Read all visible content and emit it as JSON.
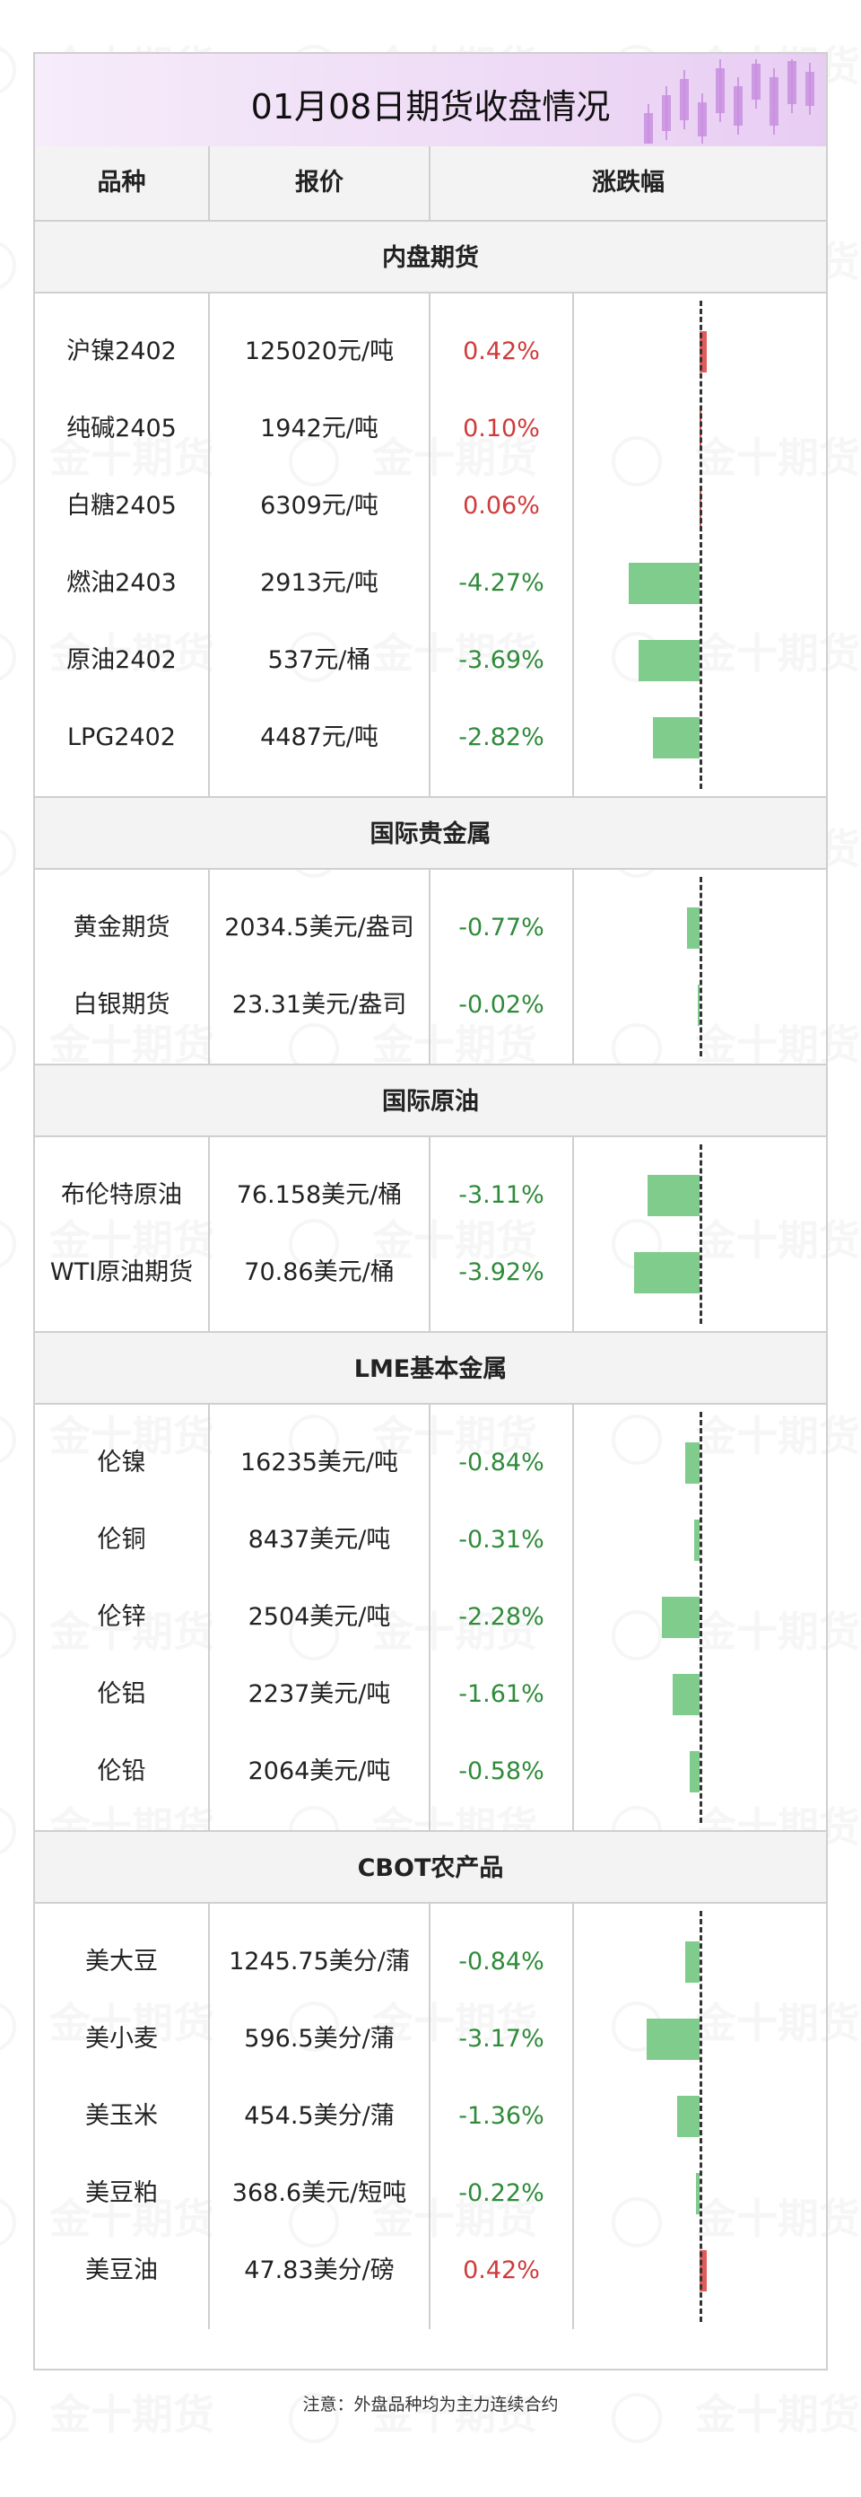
{
  "title": "01月08日期货收盘情况",
  "watermark": "金十期货",
  "headers": {
    "variety": "品种",
    "price": "报价",
    "change": "涨跌幅"
  },
  "colors": {
    "up": "#d03a3a",
    "down": "#2f8b3a",
    "bar_up": "#e25b5b",
    "bar_down": "#7fcc8c",
    "header_bg": "#f3f3f3",
    "title_bg": "#efdcf6"
  },
  "sections": [
    {
      "name": "内盘期货",
      "rows": [
        {
          "variety": "沪镍2402",
          "price": "125020元/吨",
          "change": "0.42%",
          "change_value": 0.42
        },
        {
          "variety": "纯碱2405",
          "price": "1942元/吨",
          "change": "0.10%",
          "change_value": 0.1
        },
        {
          "variety": "白糖2405",
          "price": "6309元/吨",
          "change": "0.06%",
          "change_value": 0.06
        },
        {
          "variety": "燃油2403",
          "price": "2913元/吨",
          "change": "-4.27%",
          "change_value": -4.27
        },
        {
          "variety": "原油2402",
          "price": "537元/桶",
          "change": "-3.69%",
          "change_value": -3.69
        },
        {
          "variety": "LPG2402",
          "price": "4487元/吨",
          "change": "-2.82%",
          "change_value": -2.82
        }
      ]
    },
    {
      "name": "国际贵金属",
      "rows": [
        {
          "variety": "黄金期货",
          "price": "2034.5美元/盎司",
          "change": "-0.77%",
          "change_value": -0.77
        },
        {
          "variety": "白银期货",
          "price": "23.31美元/盎司",
          "change": "-0.02%",
          "change_value": -0.02
        }
      ]
    },
    {
      "name": "国际原油",
      "rows": [
        {
          "variety": "布伦特原油",
          "price": "76.158美元/桶",
          "change": "-3.11%",
          "change_value": -3.11
        },
        {
          "variety": "WTI原油期货",
          "price": "70.86美元/桶",
          "change": "-3.92%",
          "change_value": -3.92
        }
      ]
    },
    {
      "name": "LME基本金属",
      "rows": [
        {
          "variety": "伦镍",
          "price": "16235美元/吨",
          "change": "-0.84%",
          "change_value": -0.84
        },
        {
          "variety": "伦铜",
          "price": "8437美元/吨",
          "change": "-0.31%",
          "change_value": -0.31
        },
        {
          "variety": "伦锌",
          "price": "2504美元/吨",
          "change": "-2.28%",
          "change_value": -2.28
        },
        {
          "variety": "伦铝",
          "price": "2237美元/吨",
          "change": "-1.61%",
          "change_value": -1.61
        },
        {
          "variety": "伦铅",
          "price": "2064美元/吨",
          "change": "-0.58%",
          "change_value": -0.58
        }
      ]
    },
    {
      "name": "CBOT农产品",
      "rows": [
        {
          "variety": "美大豆",
          "price": "1245.75美分/蒲",
          "change": "-0.84%",
          "change_value": -0.84
        },
        {
          "variety": "美小麦",
          "price": "596.5美分/蒲",
          "change": "-3.17%",
          "change_value": -3.17
        },
        {
          "variety": "美玉米",
          "price": "454.5美分/蒲",
          "change": "-1.36%",
          "change_value": -1.36
        },
        {
          "variety": "美豆粕",
          "price": "368.6美元/短吨",
          "change": "-0.22%",
          "change_value": -0.22
        },
        {
          "variety": "美豆油",
          "price": "47.83美分/磅",
          "change": "0.42%",
          "change_value": 0.42
        }
      ]
    }
  ],
  "note": "注意：外盘品种均为主力连续合约"
}
